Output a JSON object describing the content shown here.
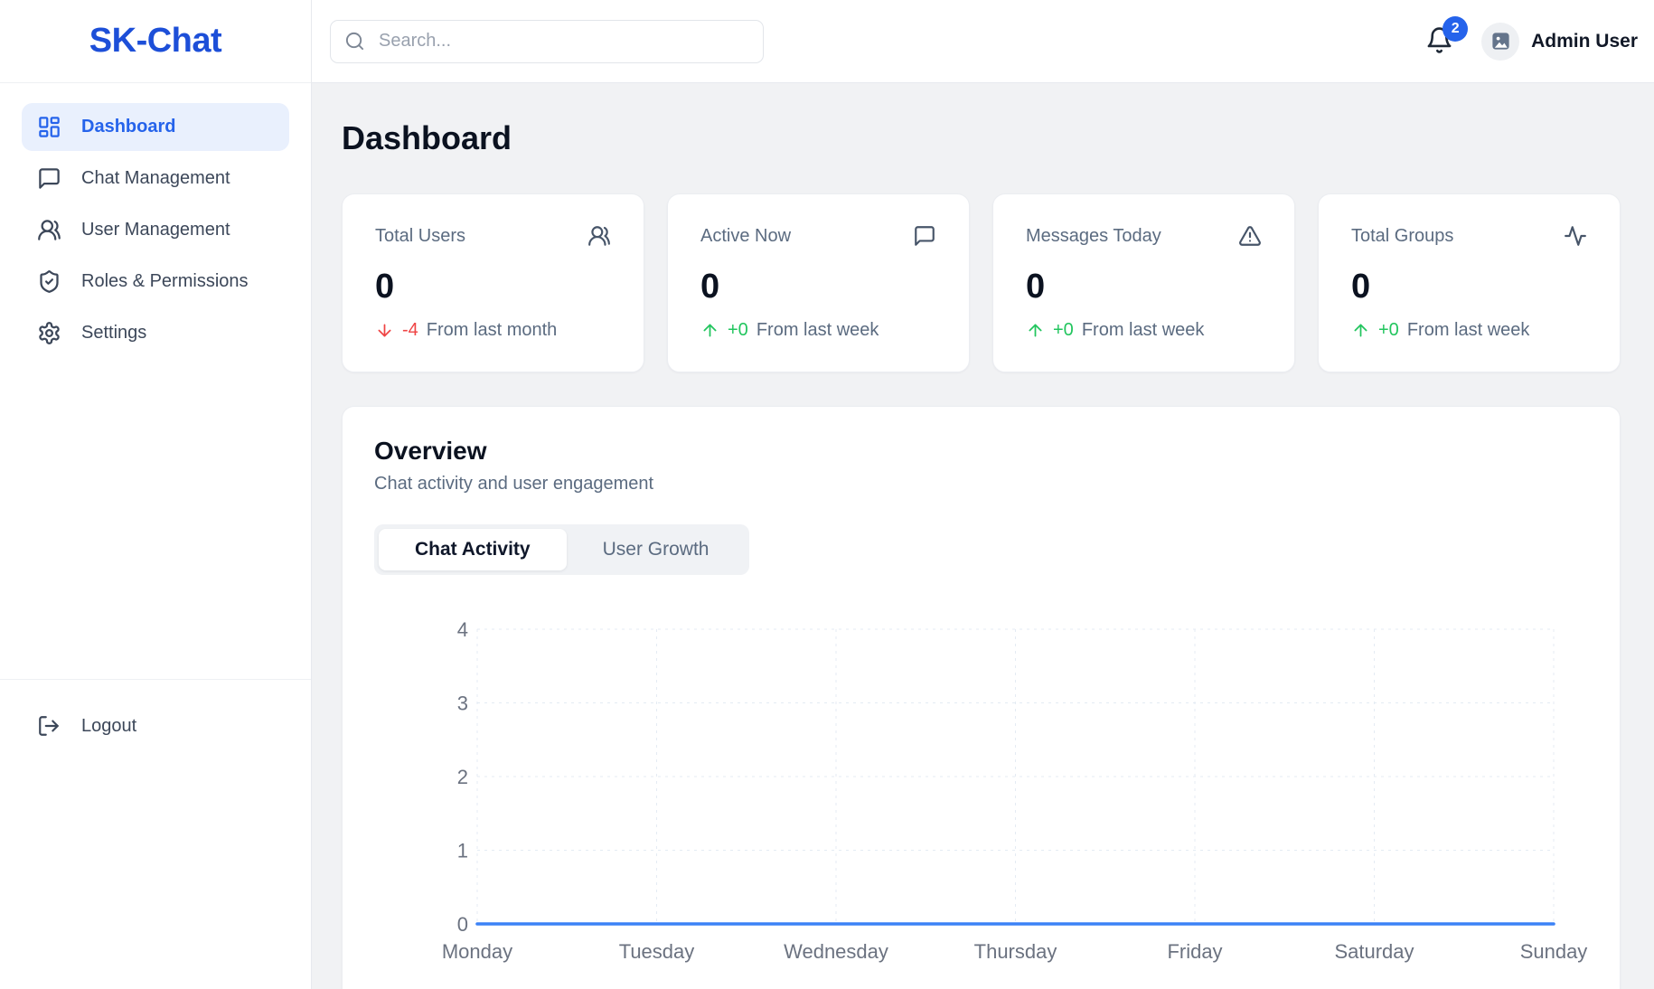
{
  "brand": {
    "logo": "SK-Chat"
  },
  "sidebar": {
    "items": [
      {
        "label": "Dashboard",
        "icon": "layout-dashboard-icon",
        "active": true
      },
      {
        "label": "Chat Management",
        "icon": "message-square-icon",
        "active": false
      },
      {
        "label": "User Management",
        "icon": "users-round-icon",
        "active": false
      },
      {
        "label": "Roles & Permissions",
        "icon": "shield-check-icon",
        "active": false
      },
      {
        "label": "Settings",
        "icon": "gear-icon",
        "active": false
      }
    ],
    "logout_label": "Logout"
  },
  "header": {
    "search_placeholder": "Search...",
    "notification_count": "2",
    "user_name": "Admin User"
  },
  "page": {
    "title": "Dashboard"
  },
  "stats": [
    {
      "title": "Total Users",
      "value": "0",
      "delta": "-4",
      "delta_dir": "down",
      "period": "From last month",
      "icon": "users-round-icon"
    },
    {
      "title": "Active Now",
      "value": "0",
      "delta": "+0",
      "delta_dir": "up",
      "period": "From last week",
      "icon": "message-square-icon"
    },
    {
      "title": "Messages Today",
      "value": "0",
      "delta": "+0",
      "delta_dir": "up",
      "period": "From last week",
      "icon": "alert-triangle-icon"
    },
    {
      "title": "Total Groups",
      "value": "0",
      "delta": "+0",
      "delta_dir": "up",
      "period": "From last week",
      "icon": "activity-icon"
    }
  ],
  "overview": {
    "title": "Overview",
    "subtitle": "Chat activity and user engagement",
    "tabs": [
      {
        "label": "Chat Activity",
        "active": true
      },
      {
        "label": "User Growth",
        "active": false
      }
    ]
  },
  "chart_data": {
    "type": "line",
    "x": [
      "Monday",
      "Tuesday",
      "Wednesday",
      "Thursday",
      "Friday",
      "Saturday",
      "Sunday"
    ],
    "series": [
      {
        "name": "Chat Activity",
        "values": [
          0,
          0,
          0,
          0,
          0,
          0,
          0
        ]
      }
    ],
    "ylim": [
      0,
      4
    ],
    "yticks": [
      0,
      1,
      2,
      3,
      4
    ],
    "grid": true,
    "grid_style": "dashed",
    "legend_position": "none",
    "line_color": "#3b82f6"
  },
  "colors": {
    "logo_blue": "#1d4fd8",
    "accent_blue": "#2563eb",
    "active_item_bg": "#e9f0fd",
    "chart_line": "#3b82f6",
    "positive_green": "#22c55e",
    "negative_red": "#ef4444",
    "page_bg": "#f1f2f4"
  }
}
